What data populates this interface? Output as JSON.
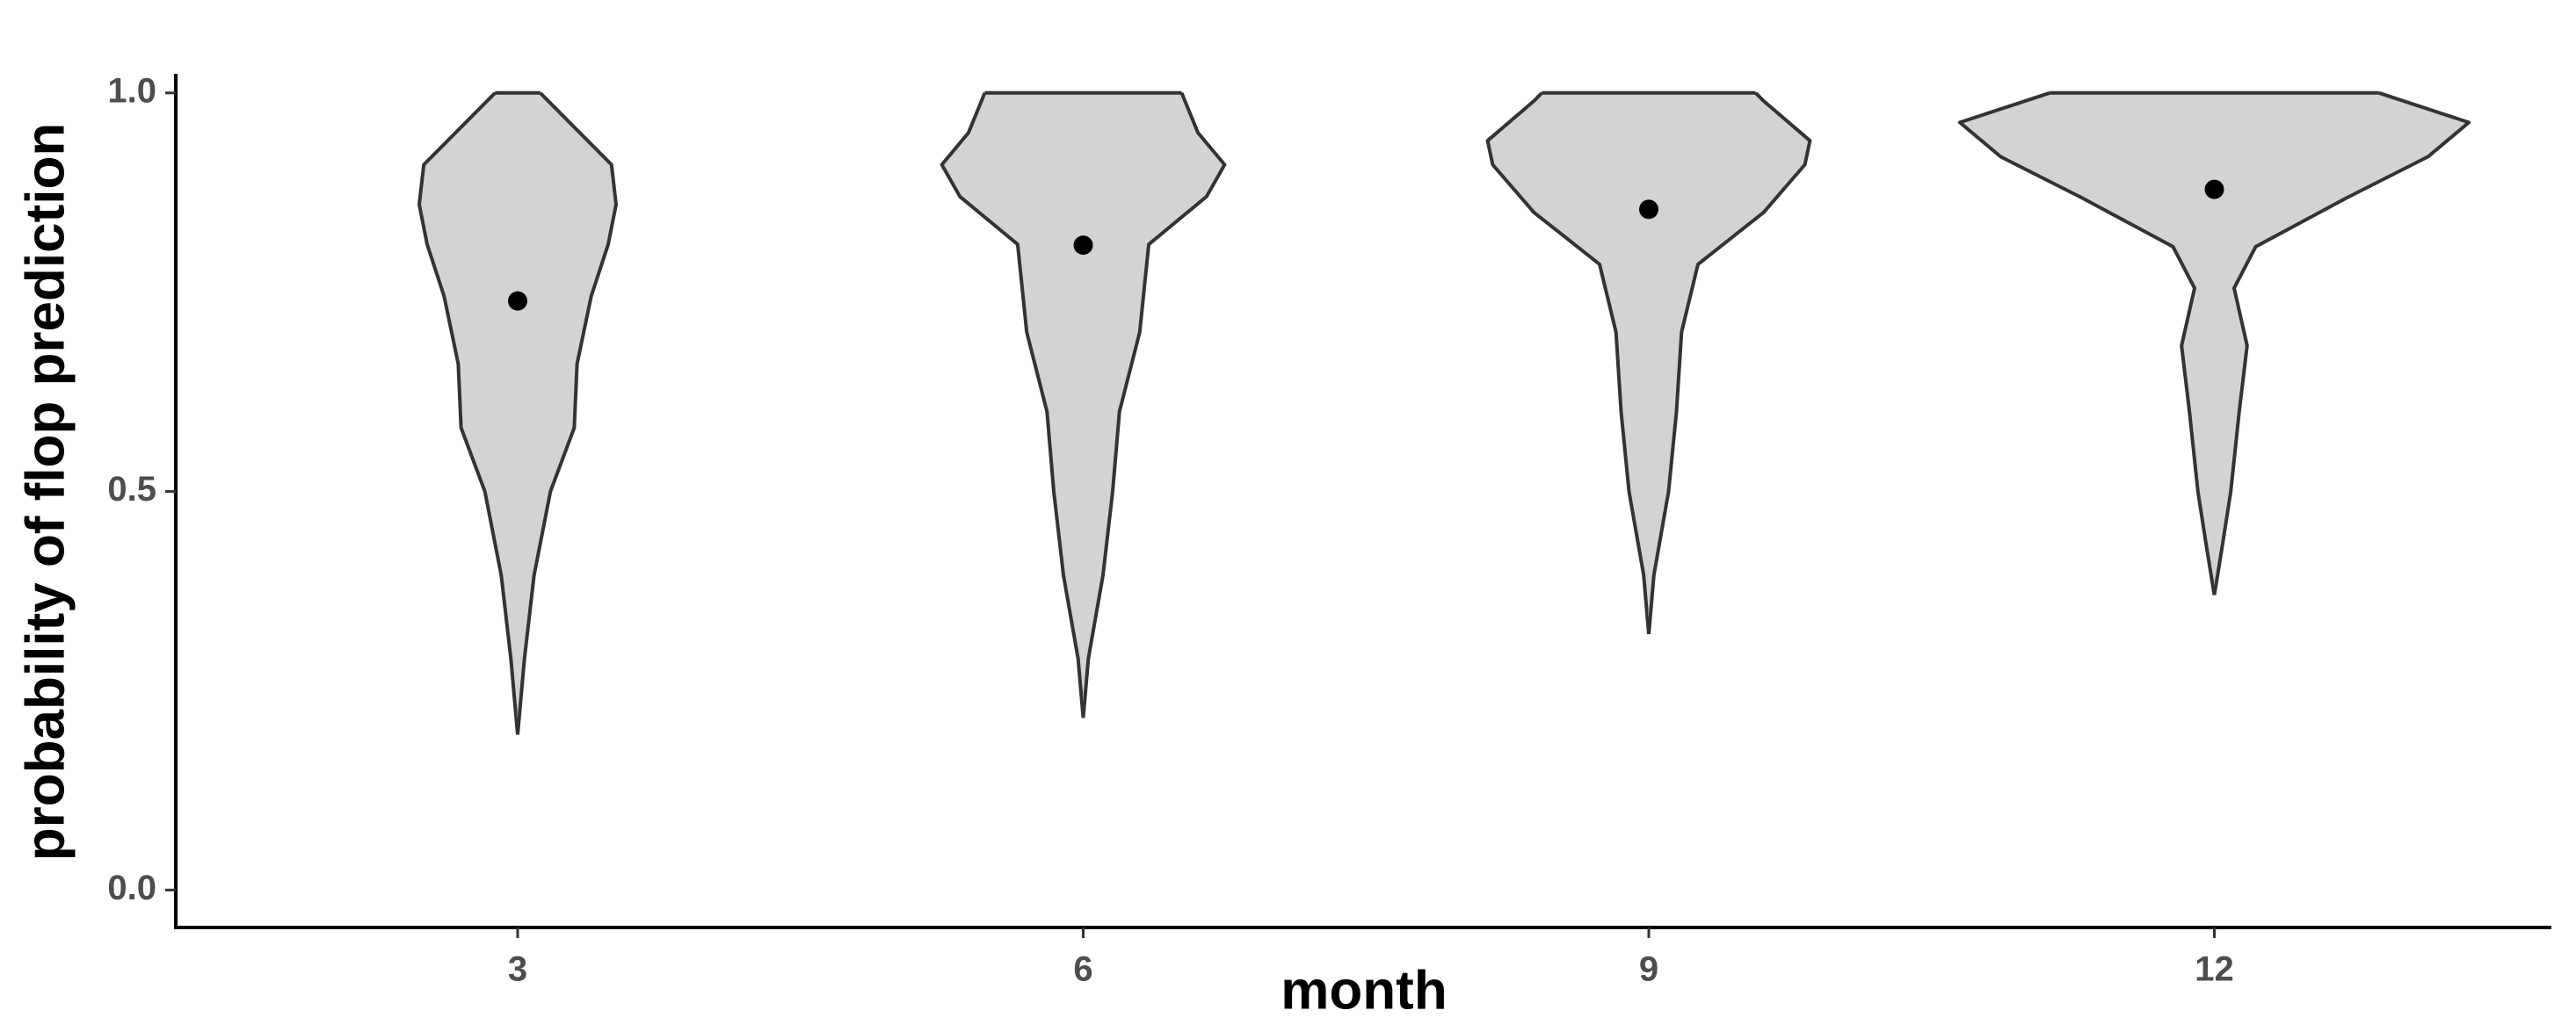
{
  "chart_data": {
    "type": "violin",
    "x_label": "month",
    "y_label": "probability of flop prediction",
    "categories": [
      "3",
      "6",
      "9",
      "12"
    ],
    "violins": [
      {
        "y": [
          0.195,
          0.29,
          0.395,
          0.5,
          0.58,
          0.66,
          0.745,
          0.81,
          0.86,
          0.91,
          1.0
        ],
        "density": [
          0,
          0.012,
          0.029,
          0.058,
          0.1,
          0.105,
          0.13,
          0.16,
          0.174,
          0.166,
          0.04
        ]
      },
      {
        "y": [
          0.216,
          0.29,
          0.395,
          0.5,
          0.6,
          0.7,
          0.81,
          0.87,
          0.91,
          0.95,
          1.0
        ],
        "density": [
          0,
          0.009,
          0.035,
          0.052,
          0.064,
          0.1,
          0.116,
          0.218,
          0.25,
          0.203,
          0.174
        ]
      },
      {
        "y": [
          0.321,
          0.395,
          0.5,
          0.6,
          0.7,
          0.785,
          0.85,
          0.91,
          0.94,
          0.99,
          1.0
        ],
        "density": [
          0,
          0.009,
          0.035,
          0.049,
          0.058,
          0.087,
          0.203,
          0.276,
          0.285,
          0.203,
          0.189
        ]
      },
      {
        "y": [
          0.37,
          0.436,
          0.5,
          0.6,
          0.683,
          0.755,
          0.807,
          0.868,
          0.92,
          0.963,
          1.0
        ],
        "density": [
          0,
          0.015,
          0.029,
          0.044,
          0.058,
          0.035,
          0.073,
          0.233,
          0.378,
          0.45,
          0.291
        ]
      }
    ],
    "means": [
      0.739,
      0.809,
      0.854,
      0.879
    ],
    "fill": "#d3d3d3",
    "outline": "#333333",
    "point_color": "#000000",
    "ylim": [
      -0.047,
      1.024
    ],
    "yticks": [
      {
        "value": 0,
        "label": "0.0"
      },
      0.5,
      {
        "value": 1,
        "label": "1.0"
      }
    ],
    "grid": false
  }
}
